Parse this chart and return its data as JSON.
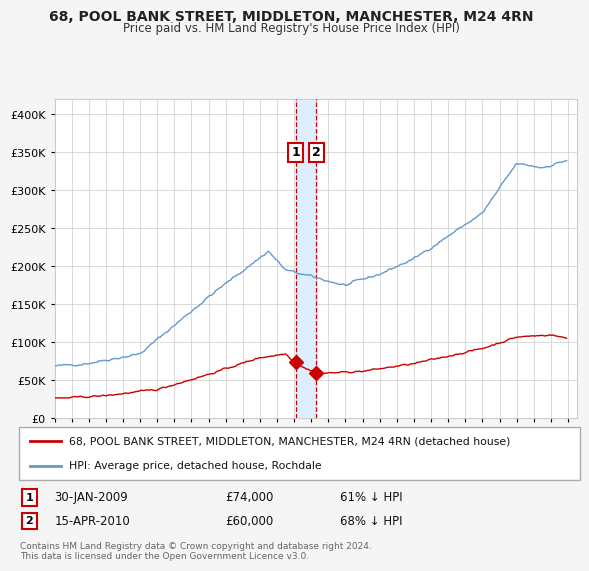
{
  "title": "68, POOL BANK STREET, MIDDLETON, MANCHESTER, M24 4RN",
  "subtitle": "Price paid vs. HM Land Registry's House Price Index (HPI)",
  "hpi_color": "#6699cc",
  "price_color": "#cc0000",
  "bg_color": "#f5f5f5",
  "chart_bg": "#ffffff",
  "grid_color": "#cccccc",
  "highlight_bg": "#ddeeff",
  "t1_date_num": 2009.08,
  "t1_price": 74000,
  "t2_date_num": 2010.29,
  "t2_price": 60000,
  "legend_line1": "68, POOL BANK STREET, MIDDLETON, MANCHESTER, M24 4RN (detached house)",
  "legend_line2": "HPI: Average price, detached house, Rochdale",
  "footnote": "Contains HM Land Registry data © Crown copyright and database right 2024.\nThis data is licensed under the Open Government Licence v3.0.",
  "ylim": [
    0,
    420000
  ],
  "yticks": [
    0,
    50000,
    100000,
    150000,
    200000,
    250000,
    300000,
    350000,
    400000
  ],
  "xlim_start": 1995,
  "xlim_end": 2025.5
}
